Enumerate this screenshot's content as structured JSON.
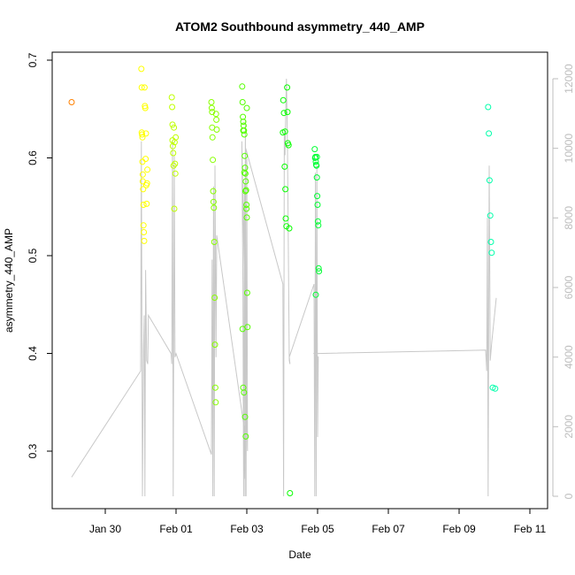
{
  "chart_data": {
    "type": "scatter",
    "title": "ATOM2 Southbound asymmetry_440_AMP",
    "xlabel": "Date",
    "ylabel": "asymmetry_440_AMP",
    "x_ticks": [
      "Jan 30",
      "Feb 01",
      "Feb 03",
      "Feb 05",
      "Feb 07",
      "Feb 09",
      "Feb 11"
    ],
    "y_ticks": [
      "0.3",
      "0.4",
      "0.5",
      "0.6",
      "0.7"
    ],
    "y2_ticks": [
      "0",
      "2000",
      "4000",
      "6000",
      "8000",
      "10000",
      "12000"
    ],
    "xlim_days": [
      -1.2,
      12.4
    ],
    "x_origin": "Jan 30",
    "ylim": [
      0.255,
      0.712
    ],
    "y2lim": [
      -200,
      12500
    ],
    "grid": false,
    "legend": "none",
    "point_series": {
      "name": "asymmetry_440_AMP",
      "x_days": [
        -0.95,
        1.02,
        1.03,
        1.03,
        1.04,
        1.05,
        1.05,
        1.06,
        1.06,
        1.07,
        1.08,
        1.08,
        1.09,
        1.1,
        1.11,
        1.12,
        1.13,
        1.14,
        1.15,
        1.16,
        1.17,
        1.18,
        1.19,
        1.88,
        1.89,
        1.9,
        1.9,
        1.91,
        1.92,
        1.93,
        1.94,
        1.95,
        1.96,
        1.97,
        1.98,
        1.99,
        3.0,
        3.01,
        3.02,
        3.02,
        3.03,
        3.04,
        3.05,
        3.06,
        3.07,
        3.08,
        3.09,
        3.1,
        3.11,
        3.12,
        3.13,
        3.14,
        3.15,
        3.87,
        3.88,
        3.89,
        3.9,
        3.91,
        3.92,
        3.93,
        3.94,
        3.95,
        3.96,
        3.97,
        3.98,
        3.99,
        4.0,
        4.01,
        4.02,
        3.88,
        3.9,
        3.92,
        3.95,
        3.97,
        4.0,
        3.93,
        3.96,
        3.99,
        3.9,
        5.02,
        5.03,
        5.05,
        5.07,
        5.09,
        5.1,
        5.12,
        5.14,
        5.16,
        5.18,
        5.2,
        5.22,
        5.08,
        5.15,
        5.92,
        5.93,
        5.94,
        5.95,
        5.96,
        5.97,
        5.98,
        5.99,
        6.0,
        6.01,
        6.02,
        6.03,
        6.04,
        5.95,
        5.98,
        10.82,
        10.84,
        10.86,
        10.88,
        10.9,
        10.92,
        10.95,
        11.02
      ],
      "y": [
        0.657,
        0.691,
        0.672,
        0.626,
        0.624,
        0.621,
        0.596,
        0.583,
        0.576,
        0.568,
        0.552,
        0.531,
        0.524,
        0.515,
        0.672,
        0.653,
        0.651,
        0.599,
        0.625,
        0.572,
        0.553,
        0.574,
        0.588,
        0.662,
        0.652,
        0.634,
        0.618,
        0.612,
        0.605,
        0.592,
        0.631,
        0.548,
        0.616,
        0.594,
        0.584,
        0.621,
        0.657,
        0.651,
        0.647,
        0.631,
        0.621,
        0.598,
        0.566,
        0.555,
        0.549,
        0.514,
        0.457,
        0.409,
        0.365,
        0.35,
        0.645,
        0.639,
        0.629,
        0.673,
        0.657,
        0.642,
        0.637,
        0.633,
        0.628,
        0.624,
        0.602,
        0.59,
        0.584,
        0.576,
        0.567,
        0.552,
        0.539,
        0.462,
        0.427,
        0.425,
        0.365,
        0.36,
        0.335,
        0.315,
        0.651,
        0.585,
        0.566,
        0.548,
        0.628,
        0.626,
        0.659,
        0.646,
        0.591,
        0.568,
        0.538,
        0.53,
        0.672,
        0.615,
        0.613,
        0.528,
        0.257,
        0.627,
        0.647,
        0.609,
        0.6,
        0.601,
        0.596,
        0.593,
        0.592,
        0.58,
        0.561,
        0.552,
        0.535,
        0.531,
        0.487,
        0.484,
        0.46,
        0.601,
        0.652,
        0.625,
        0.577,
        0.541,
        0.514,
        0.503,
        0.365,
        0.364
      ]
    },
    "line_series": {
      "name": "secondary",
      "x_days": [
        -0.95,
        1.0,
        1.02,
        1.05,
        1.08,
        1.1,
        1.12,
        1.14,
        1.17,
        1.2,
        1.22,
        1.86,
        1.88,
        1.9,
        1.92,
        1.95,
        1.97,
        2.0,
        3.0,
        3.02,
        3.04,
        3.06,
        3.08,
        3.1,
        3.13,
        3.15,
        3.92,
        3.94,
        3.96,
        3.98,
        4.0,
        4.02,
        3.86,
        3.89,
        3.91,
        3.93,
        3.95,
        3.97,
        5.02,
        5.04,
        5.06,
        5.08,
        5.1,
        5.12,
        5.15,
        5.2,
        5.22,
        5.2,
        5.9,
        5.92,
        5.94,
        5.96,
        5.98,
        6.0,
        6.02,
        5.9,
        10.75,
        10.78,
        10.8,
        10.82,
        10.85,
        10.88,
        10.92,
        11.05
      ],
      "y": [
        550,
        3600,
        10200,
        0,
        4200,
        5200,
        0,
        6500,
        3900,
        3800,
        5200,
        4100,
        3800,
        10200,
        0,
        9800,
        4000,
        4100,
        1200,
        6800,
        0,
        8900,
        0,
        9500,
        4000,
        7500,
        2000,
        500,
        10800,
        0,
        9700,
        1300,
        10200,
        6100,
        0,
        9000,
        0,
        10000,
        6100,
        0,
        10500,
        9800,
        11000,
        12000,
        10000,
        3900,
        3800,
        4000,
        6100,
        0,
        9300,
        0,
        9500,
        1700,
        4000,
        4100,
        4200,
        3600,
        8000,
        0,
        9500,
        3900,
        4400,
        5700
      ]
    }
  }
}
